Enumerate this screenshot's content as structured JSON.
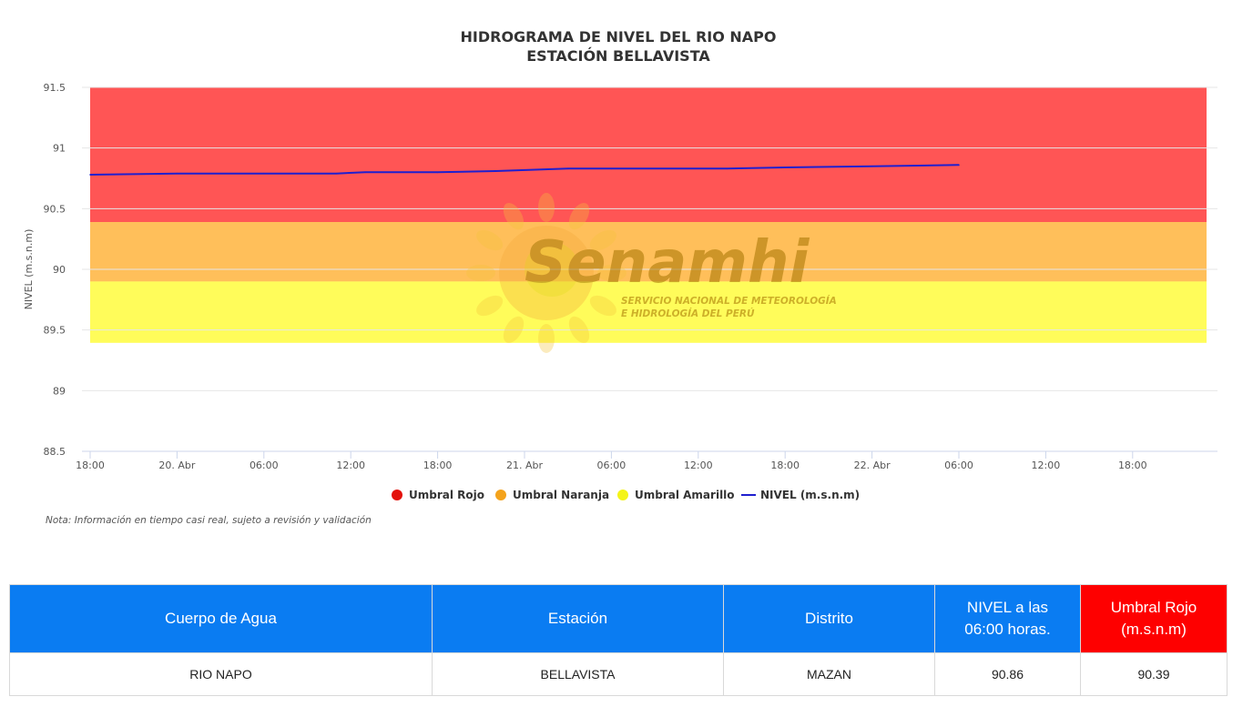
{
  "chart_data": {
    "type": "line",
    "title": "HIDROGRAMA DE NIVEL DEL RIO NAPO",
    "subtitle": "ESTACIÓN BELLAVISTA",
    "ylabel": "NIVEL (m.s.n.m)",
    "xlabel": "",
    "ylim": [
      88.5,
      91.5
    ],
    "y_ticks": [
      "91.5",
      "91",
      "90.5",
      "90",
      "89.5",
      "89",
      "88.5"
    ],
    "x_ticks": [
      "18:00",
      "20. Abr",
      "06:00",
      "12:00",
      "18:00",
      "21. Abr",
      "06:00",
      "12:00",
      "18:00",
      "22. Abr",
      "06:00",
      "12:00",
      "18:00"
    ],
    "grid": true,
    "legend_position": "bottom",
    "threshold_bands": [
      {
        "name": "Umbral Rojo",
        "from": 90.39,
        "to": 91.5,
        "color": "#ff5555"
      },
      {
        "name": "Umbral Naranja",
        "from": 89.9,
        "to": 90.39,
        "color": "#ffbf5a"
      },
      {
        "name": "Umbral Amarillo",
        "from": 89.4,
        "to": 89.9,
        "color": "#fffc5a"
      }
    ],
    "series": [
      {
        "name": "NIVEL (m.s.n.m)",
        "color": "#1f1fcf",
        "x": [
          "19 Abr 18:00",
          "20 Abr 00:00",
          "20 Abr 06:00",
          "20 Abr 11:00",
          "20 Abr 13:00",
          "20 Abr 18:00",
          "20 Abr 22:00",
          "21 Abr 03:00",
          "21 Abr 06:00",
          "21 Abr 14:00",
          "21 Abr 18:00",
          "22 Abr 00:00",
          "22 Abr 06:00"
        ],
        "values": [
          90.78,
          90.79,
          90.79,
          90.79,
          90.8,
          90.8,
          90.81,
          90.83,
          90.83,
          90.83,
          90.84,
          90.85,
          90.86
        ]
      }
    ],
    "legend": [
      {
        "label": "Umbral Rojo",
        "color": "#e3120b"
      },
      {
        "label": "Umbral Naranja",
        "color": "#f4a31c"
      },
      {
        "label": "Umbral Amarillo",
        "color": "#f4f418"
      },
      {
        "label": "NIVEL (m.s.n.m)",
        "color": "#1f1fcf"
      }
    ]
  },
  "watermark": {
    "brand": "Senamhi",
    "line1": "SERVICIO NACIONAL DE METEOROLOGÍA",
    "line2": "E HIDROLOGÍA DEL PERÚ"
  },
  "note": "Nota: Información en tiempo casi real, sujeto a revisión y validación",
  "table": {
    "headers": [
      "Cuerpo de Agua",
      "Estación",
      "Distrito",
      "NIVEL a las 06:00 horas.",
      "Umbral Rojo (m.s.n.m)"
    ],
    "row": [
      "RIO NAPO",
      "BELLAVISTA",
      "MAZAN",
      "90.86",
      "90.39"
    ],
    "header_color": "#0a7cf2",
    "header_red_color": "#fe0000"
  }
}
